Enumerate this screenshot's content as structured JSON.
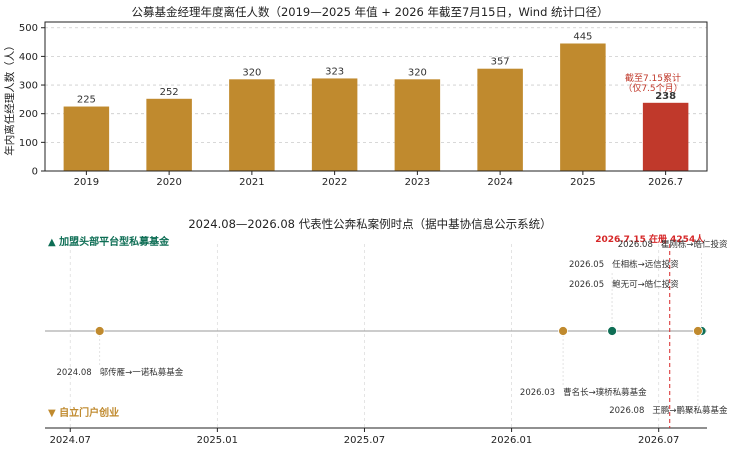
{
  "chart_data": [
    {
      "type": "bar",
      "title": "公募基金经理年度离任人数（2019—2025 年值 + 2026 年截至7月15日，Wind 统计口径）",
      "ylabel": "年内离任经理人数（人）",
      "xlabel": "",
      "categories": [
        "2019",
        "2020",
        "2021",
        "2022",
        "2023",
        "2024",
        "2025",
        "2026.7"
      ],
      "values": [
        225,
        252,
        320,
        323,
        320,
        357,
        445,
        238
      ],
      "ylim": [
        0,
        520
      ],
      "yticks": [
        0,
        100,
        200,
        300,
        400,
        500
      ],
      "grid": "horizontal dashed",
      "annotation": {
        "line1": "截至7.15累计",
        "line2": "（仅7.5个月）"
      },
      "colors": {
        "bar": "#C08A2E",
        "highlight": "#C0392B",
        "annotation": "#C0392B"
      }
    },
    {
      "type": "timeline",
      "title": "2024.08—2026.08 代表性公奔私案例时点（据中基协信息公示系统）",
      "xticks": [
        "2024.07",
        "2025.01",
        "2025.07",
        "2026.01",
        "2026.07"
      ],
      "upper_label": "▲ 加盟头部平台型私募基金",
      "lower_label": "▼ 自立门户创业",
      "marker_line_label": "2026.7.15 在册 4254人",
      "colors": {
        "join": "#0E6E55",
        "self": "#C08A2E",
        "marker": "#D62728",
        "axis": "#999999"
      },
      "events": [
        {
          "date": "2024.08",
          "text": "邬传雁→一诺私募基金",
          "group": "self"
        },
        {
          "date": "2026.03",
          "text": "曹名长→璞桥私募基金",
          "group": "self"
        },
        {
          "date": "2026.05",
          "text": "任相栋→远信投资",
          "group": "join"
        },
        {
          "date": "2026.05",
          "text": "鲍无可→皓仁投资",
          "group": "join"
        },
        {
          "date": "2026.08",
          "text": "瞿刚栋→皓仁投资",
          "group": "join"
        },
        {
          "date": "2026.08",
          "text": "王鹏→鹏聚私募基金",
          "group": "self"
        }
      ]
    }
  ]
}
